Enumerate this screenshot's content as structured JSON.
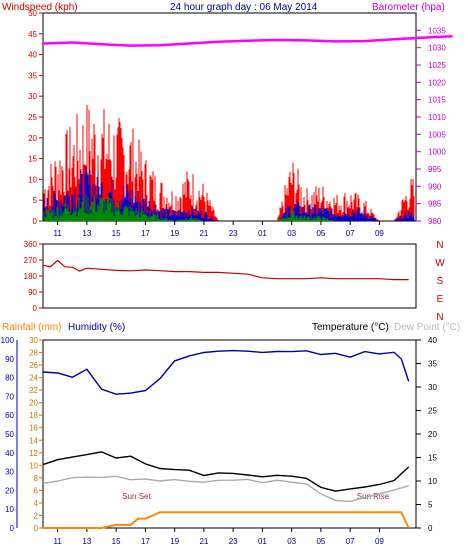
{
  "chart_data": [
    {
      "type": "line",
      "title": "24 hour graph day : 06 May 2014",
      "left_axis_label": "Windspeed (kph)",
      "right_axis_label": "Barometer (hpa)",
      "x_tick_labels": [
        "11",
        "13",
        "15",
        "17",
        "19",
        "21",
        "23",
        "01",
        "03",
        "05",
        "07",
        "09"
      ],
      "left_axis": {
        "range": [
          0,
          50
        ],
        "ticks": [
          0,
          5,
          10,
          15,
          20,
          25,
          30,
          35,
          40,
          45,
          50
        ]
      },
      "right_axis": {
        "range": [
          980,
          1040
        ],
        "ticks": [
          980,
          985,
          990,
          995,
          1000,
          1005,
          1010,
          1015,
          1020,
          1025,
          1030,
          1035
        ]
      },
      "grid": true,
      "series": [
        {
          "name": "Barometer",
          "color": "#ff00ff",
          "axis": "right",
          "x_hours": [
            0,
            2,
            4,
            6,
            8,
            10,
            12,
            14,
            16,
            18,
            20,
            22,
            24,
            26,
            28
          ],
          "values": [
            1031.2,
            1031.5,
            1031.0,
            1030.6,
            1030.7,
            1031.2,
            1031.7,
            1032.0,
            1032.2,
            1032.1,
            1031.8,
            1031.9,
            1032.4,
            1032.9,
            1033.3
          ]
        },
        {
          "name": "Wind gust",
          "color": "#ff0000",
          "axis": "left",
          "x_hours": [
            0,
            1,
            2,
            3,
            4,
            5,
            6,
            7,
            8,
            9,
            10,
            11,
            12,
            13,
            14,
            15,
            16,
            17,
            18,
            19,
            20,
            21,
            22,
            23,
            24,
            25
          ],
          "values": [
            8,
            14,
            18,
            22,
            21,
            19,
            18,
            12,
            8,
            6,
            10,
            7,
            0,
            0,
            0,
            0,
            0,
            12,
            6,
            7,
            5,
            6,
            4,
            0,
            0,
            8
          ]
        },
        {
          "name": "Wind average",
          "color": "#0000cc",
          "axis": "left",
          "x_hours": [
            0,
            1,
            2,
            3,
            4,
            5,
            6,
            7,
            8,
            9,
            10,
            11,
            12,
            13,
            14,
            15,
            16,
            17,
            18,
            19,
            20,
            21,
            22,
            23,
            24,
            25
          ],
          "values": [
            4,
            6,
            8,
            10,
            9,
            8,
            7,
            5,
            3,
            2,
            3,
            2,
            0,
            0,
            0,
            0,
            0,
            4,
            3,
            3,
            2,
            3,
            2,
            0,
            0,
            2
          ]
        },
        {
          "name": "Wind calm",
          "color": "#008800",
          "axis": "left",
          "x_hours": [
            0,
            1,
            2,
            3,
            4,
            5,
            6,
            7,
            8,
            9,
            10,
            11,
            12,
            13,
            14,
            15,
            16,
            17,
            18,
            19,
            20,
            21,
            22,
            23,
            24,
            25
          ],
          "values": [
            2,
            3,
            4,
            5,
            5,
            4,
            3,
            2,
            1,
            0,
            1,
            0,
            0,
            0,
            0,
            0,
            0,
            2,
            1,
            1,
            0,
            0,
            0,
            0,
            0,
            0
          ]
        }
      ]
    },
    {
      "type": "line",
      "title": "",
      "left_axis": {
        "range": [
          0,
          360
        ],
        "ticks": [
          0,
          90,
          180,
          270,
          360
        ]
      },
      "right_labels": [
        "N",
        "W",
        "S",
        "E",
        "N"
      ],
      "x_tick_labels": [
        "11",
        "13",
        "15",
        "17",
        "19",
        "21",
        "23",
        "01",
        "03",
        "05",
        "07",
        "09"
      ],
      "grid": true,
      "series": [
        {
          "name": "Wind direction",
          "color": "#cc0000",
          "x_hours": [
            0,
            0.5,
            1,
            1.5,
            2,
            2.5,
            3,
            4,
            5,
            6,
            7,
            8,
            9,
            10,
            11,
            12,
            13,
            14,
            15,
            16,
            17,
            18,
            19,
            20,
            21,
            22,
            23,
            24,
            25
          ],
          "values": [
            245,
            240,
            255,
            235,
            225,
            215,
            210,
            220,
            215,
            210,
            200,
            210,
            205,
            205,
            200,
            200,
            195,
            190,
            170,
            165,
            165,
            165,
            170,
            165,
            165,
            165,
            165,
            160,
            160
          ]
        }
      ]
    },
    {
      "type": "line",
      "title": "",
      "header_labels": {
        "rainfall": "Rainfall (mm)",
        "humidity": "Humidity (%)",
        "temperature": "Temperature (°C)",
        "dew_point": "Dew Point (°C)"
      },
      "humidity_axis": {
        "range": [
          0,
          100
        ],
        "ticks": [
          0,
          10,
          20,
          30,
          40,
          50,
          60,
          70,
          80,
          90,
          100
        ]
      },
      "rainfall_axis": {
        "range": [
          0,
          30
        ],
        "ticks": [
          0,
          2,
          4,
          6,
          8,
          10,
          12,
          14,
          16,
          18,
          20,
          22,
          24,
          26,
          28,
          30
        ]
      },
      "temperature_axis": {
        "range": [
          0,
          40
        ],
        "ticks": [
          0,
          5,
          10,
          15,
          20,
          25,
          30,
          35,
          40
        ]
      },
      "x_tick_labels": [
        "11",
        "13",
        "15",
        "17",
        "19",
        "21",
        "23",
        "01",
        "03",
        "05",
        "07",
        "09"
      ],
      "annotations": [
        "Sun Set",
        "Sun Rise"
      ],
      "grid": true,
      "series": [
        {
          "name": "Humidity",
          "color": "#0000aa",
          "axis": "humidity",
          "x_hours": [
            0,
            1,
            2,
            3,
            4,
            5,
            6,
            7,
            8,
            9,
            10,
            11,
            12,
            13,
            14,
            15,
            16,
            17,
            18,
            19,
            20,
            21,
            22,
            23,
            24,
            24.5,
            25
          ],
          "values": [
            83,
            82,
            79,
            85,
            75,
            72,
            71,
            74,
            80,
            88,
            92,
            93,
            93,
            93,
            94,
            94,
            94,
            94,
            94,
            93,
            92,
            92,
            93,
            94,
            94,
            90,
            78
          ]
        },
        {
          "name": "Temperature",
          "color": "#000000",
          "axis": "temperature",
          "x_hours": [
            0,
            1,
            2,
            3,
            4,
            5,
            6,
            7,
            8,
            9,
            10,
            11,
            12,
            13,
            14,
            15,
            16,
            17,
            18,
            19,
            20,
            21,
            22,
            23,
            24,
            25
          ],
          "values": [
            13.5,
            14.5,
            15,
            15.5,
            16,
            15,
            15,
            14,
            13,
            12.5,
            12,
            11.5,
            11.5,
            11.5,
            11,
            11,
            11,
            10.8,
            10.5,
            8.5,
            8,
            8,
            8.5,
            9,
            10,
            13
          ]
        },
        {
          "name": "Dew Point",
          "color": "#aaaaaa",
          "axis": "temperature",
          "x_hours": [
            0,
            1,
            2,
            3,
            4,
            5,
            6,
            7,
            8,
            9,
            10,
            11,
            12,
            13,
            14,
            15,
            16,
            17,
            18,
            19,
            20,
            21,
            22,
            23,
            24,
            25
          ],
          "values": [
            9.5,
            10,
            10.5,
            11,
            11,
            11,
            10.5,
            10.5,
            10,
            10,
            10,
            10,
            10,
            10,
            10,
            10,
            10,
            10,
            9.5,
            7,
            6,
            6,
            6.5,
            7,
            8,
            9
          ]
        },
        {
          "name": "Rainfall",
          "color": "#ff8800",
          "axis": "rainfall",
          "x_hours": [
            0,
            1,
            2,
            3,
            4,
            5,
            5.5,
            6,
            6.5,
            7,
            7.5,
            8,
            9,
            10,
            11,
            12,
            13,
            14,
            15,
            16,
            17,
            18,
            19,
            20,
            21,
            22,
            23,
            24,
            24.5,
            25
          ],
          "values": [
            0,
            0,
            0,
            0,
            0,
            0.5,
            0.5,
            0.5,
            1.5,
            1.5,
            2,
            2.5,
            2.5,
            2.5,
            2.5,
            2.5,
            2.5,
            2.5,
            2.5,
            2.5,
            2.5,
            2.5,
            2.5,
            2.5,
            2.5,
            2.5,
            2.5,
            2.5,
            2.5,
            0
          ]
        }
      ]
    }
  ]
}
